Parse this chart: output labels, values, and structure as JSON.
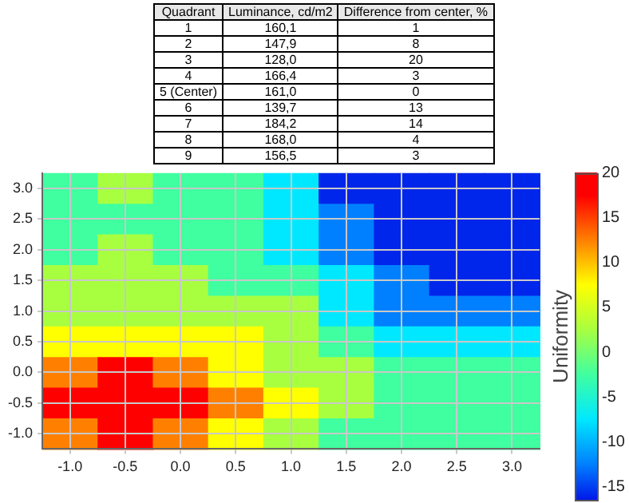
{
  "chart_data": {
    "type": "heatmap",
    "annotations": [
      "Quadrant",
      "Luminance, cd/m2",
      "Difference from center, %",
      "1",
      "160,1",
      "1",
      "2",
      "147,9",
      "8",
      "3",
      "128,0",
      "20",
      "4",
      "166,4",
      "3",
      "5 (Center)",
      "161,0",
      "0",
      "6",
      "139,7",
      "13",
      "7",
      "184,2",
      "14",
      "8",
      "168,0",
      "4",
      "9",
      "156,5",
      "3"
    ],
    "categories": [
      "-1.0",
      "-0.5",
      "0.0",
      "0.5",
      "1.0",
      "1.5",
      "2.0",
      "2.5",
      "3.0"
    ],
    "y_categories": [
      "3.0",
      "2.5",
      "2.0",
      "1.5",
      "1.0",
      "0.5",
      "0.0",
      "-0.5",
      "-1.0"
    ],
    "cells": [
      [
        -2.5,
        2.5,
        -2.5,
        -2.5,
        -7.5,
        -16,
        -16,
        -16,
        -16
      ],
      [
        -2.5,
        -2.5,
        -2.5,
        -2.5,
        -7.5,
        -12.5,
        -16,
        -16,
        -16
      ],
      [
        -2.5,
        2.5,
        -2.5,
        -2.5,
        -7.5,
        -12.5,
        -16,
        -16,
        -16
      ],
      [
        2.5,
        2.5,
        2.5,
        -2.5,
        -2.5,
        -7.5,
        -12.5,
        -16,
        -16
      ],
      [
        2.5,
        2.5,
        2.5,
        2.5,
        2.5,
        -7.5,
        -12.5,
        -12.5,
        -12.5
      ],
      [
        7.5,
        7.5,
        7.5,
        7.5,
        2.5,
        -2.5,
        -7.5,
        -7.5,
        -7.5
      ],
      [
        12.5,
        17.5,
        12.5,
        7.5,
        2.5,
        2.5,
        -2.5,
        -2.5,
        -2.5
      ],
      [
        17.5,
        17.5,
        17.5,
        12.5,
        7.5,
        2.5,
        -2.5,
        -2.5,
        -2.5
      ],
      [
        12.5,
        17.5,
        12.5,
        7.5,
        2.5,
        -2.5,
        -2.5,
        -2.5,
        -2.5
      ]
    ],
    "clabel": "Uniformity",
    "clim": [
      -16.5,
      20
    ],
    "cticks": [
      -15,
      -10,
      -5,
      0,
      5,
      10,
      15,
      20
    ],
    "grid": true
  }
}
